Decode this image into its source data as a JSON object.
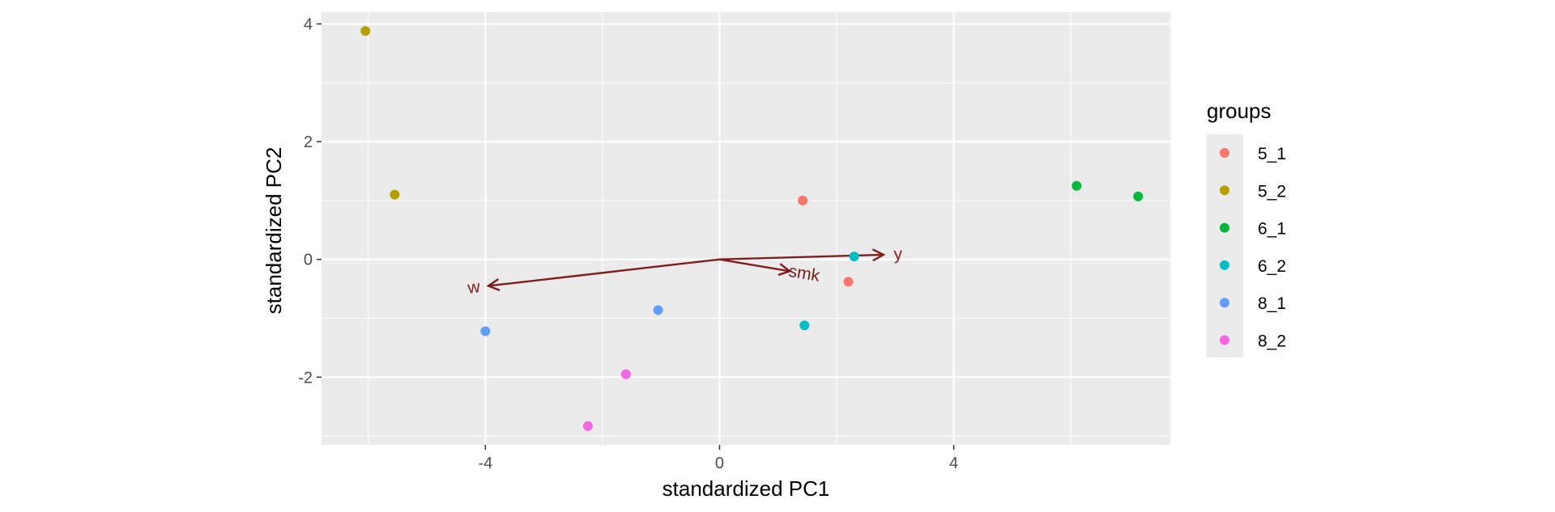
{
  "chart_data": {
    "type": "scatter",
    "xlabel": "standardized PC1",
    "ylabel": "standardized PC2",
    "xlim": [
      -6.8,
      7.7
    ],
    "ylim": [
      -3.15,
      4.2
    ],
    "x_ticks": [
      -4,
      0,
      4
    ],
    "y_ticks": [
      -2,
      0,
      2,
      4
    ],
    "grid": true,
    "legend": {
      "title": "groups",
      "placement": "right",
      "entries": [
        "5_1",
        "5_2",
        "6_1",
        "6_2",
        "8_1",
        "8_2"
      ]
    },
    "series": [
      {
        "name": "5_1",
        "color": "#F8766D",
        "points": [
          [
            1.42,
            1.0
          ],
          [
            2.2,
            -0.38
          ]
        ]
      },
      {
        "name": "5_2",
        "color": "#B79F00",
        "points": [
          [
            -6.05,
            3.88
          ],
          [
            -5.55,
            1.1
          ]
        ]
      },
      {
        "name": "6_1",
        "color": "#00BA38",
        "points": [
          [
            6.1,
            1.25
          ],
          [
            7.15,
            1.07
          ]
        ]
      },
      {
        "name": "6_2",
        "color": "#00BFC4",
        "points": [
          [
            2.3,
            0.05
          ],
          [
            1.45,
            -1.12
          ]
        ]
      },
      {
        "name": "8_1",
        "color": "#619CFF",
        "points": [
          [
            -4.0,
            -1.22
          ],
          [
            -1.05,
            -0.86
          ]
        ]
      },
      {
        "name": "8_2",
        "color": "#F564E3",
        "points": [
          [
            -1.6,
            -1.95
          ],
          [
            -2.25,
            -2.83
          ]
        ]
      }
    ],
    "arrows": [
      {
        "label": "w",
        "x": -3.95,
        "y": -0.45
      },
      {
        "label": "smk",
        "x": 1.2,
        "y": -0.2
      },
      {
        "label": "y",
        "x": 2.8,
        "y": 0.08
      }
    ],
    "arrow_color": "#7F1D1D"
  }
}
